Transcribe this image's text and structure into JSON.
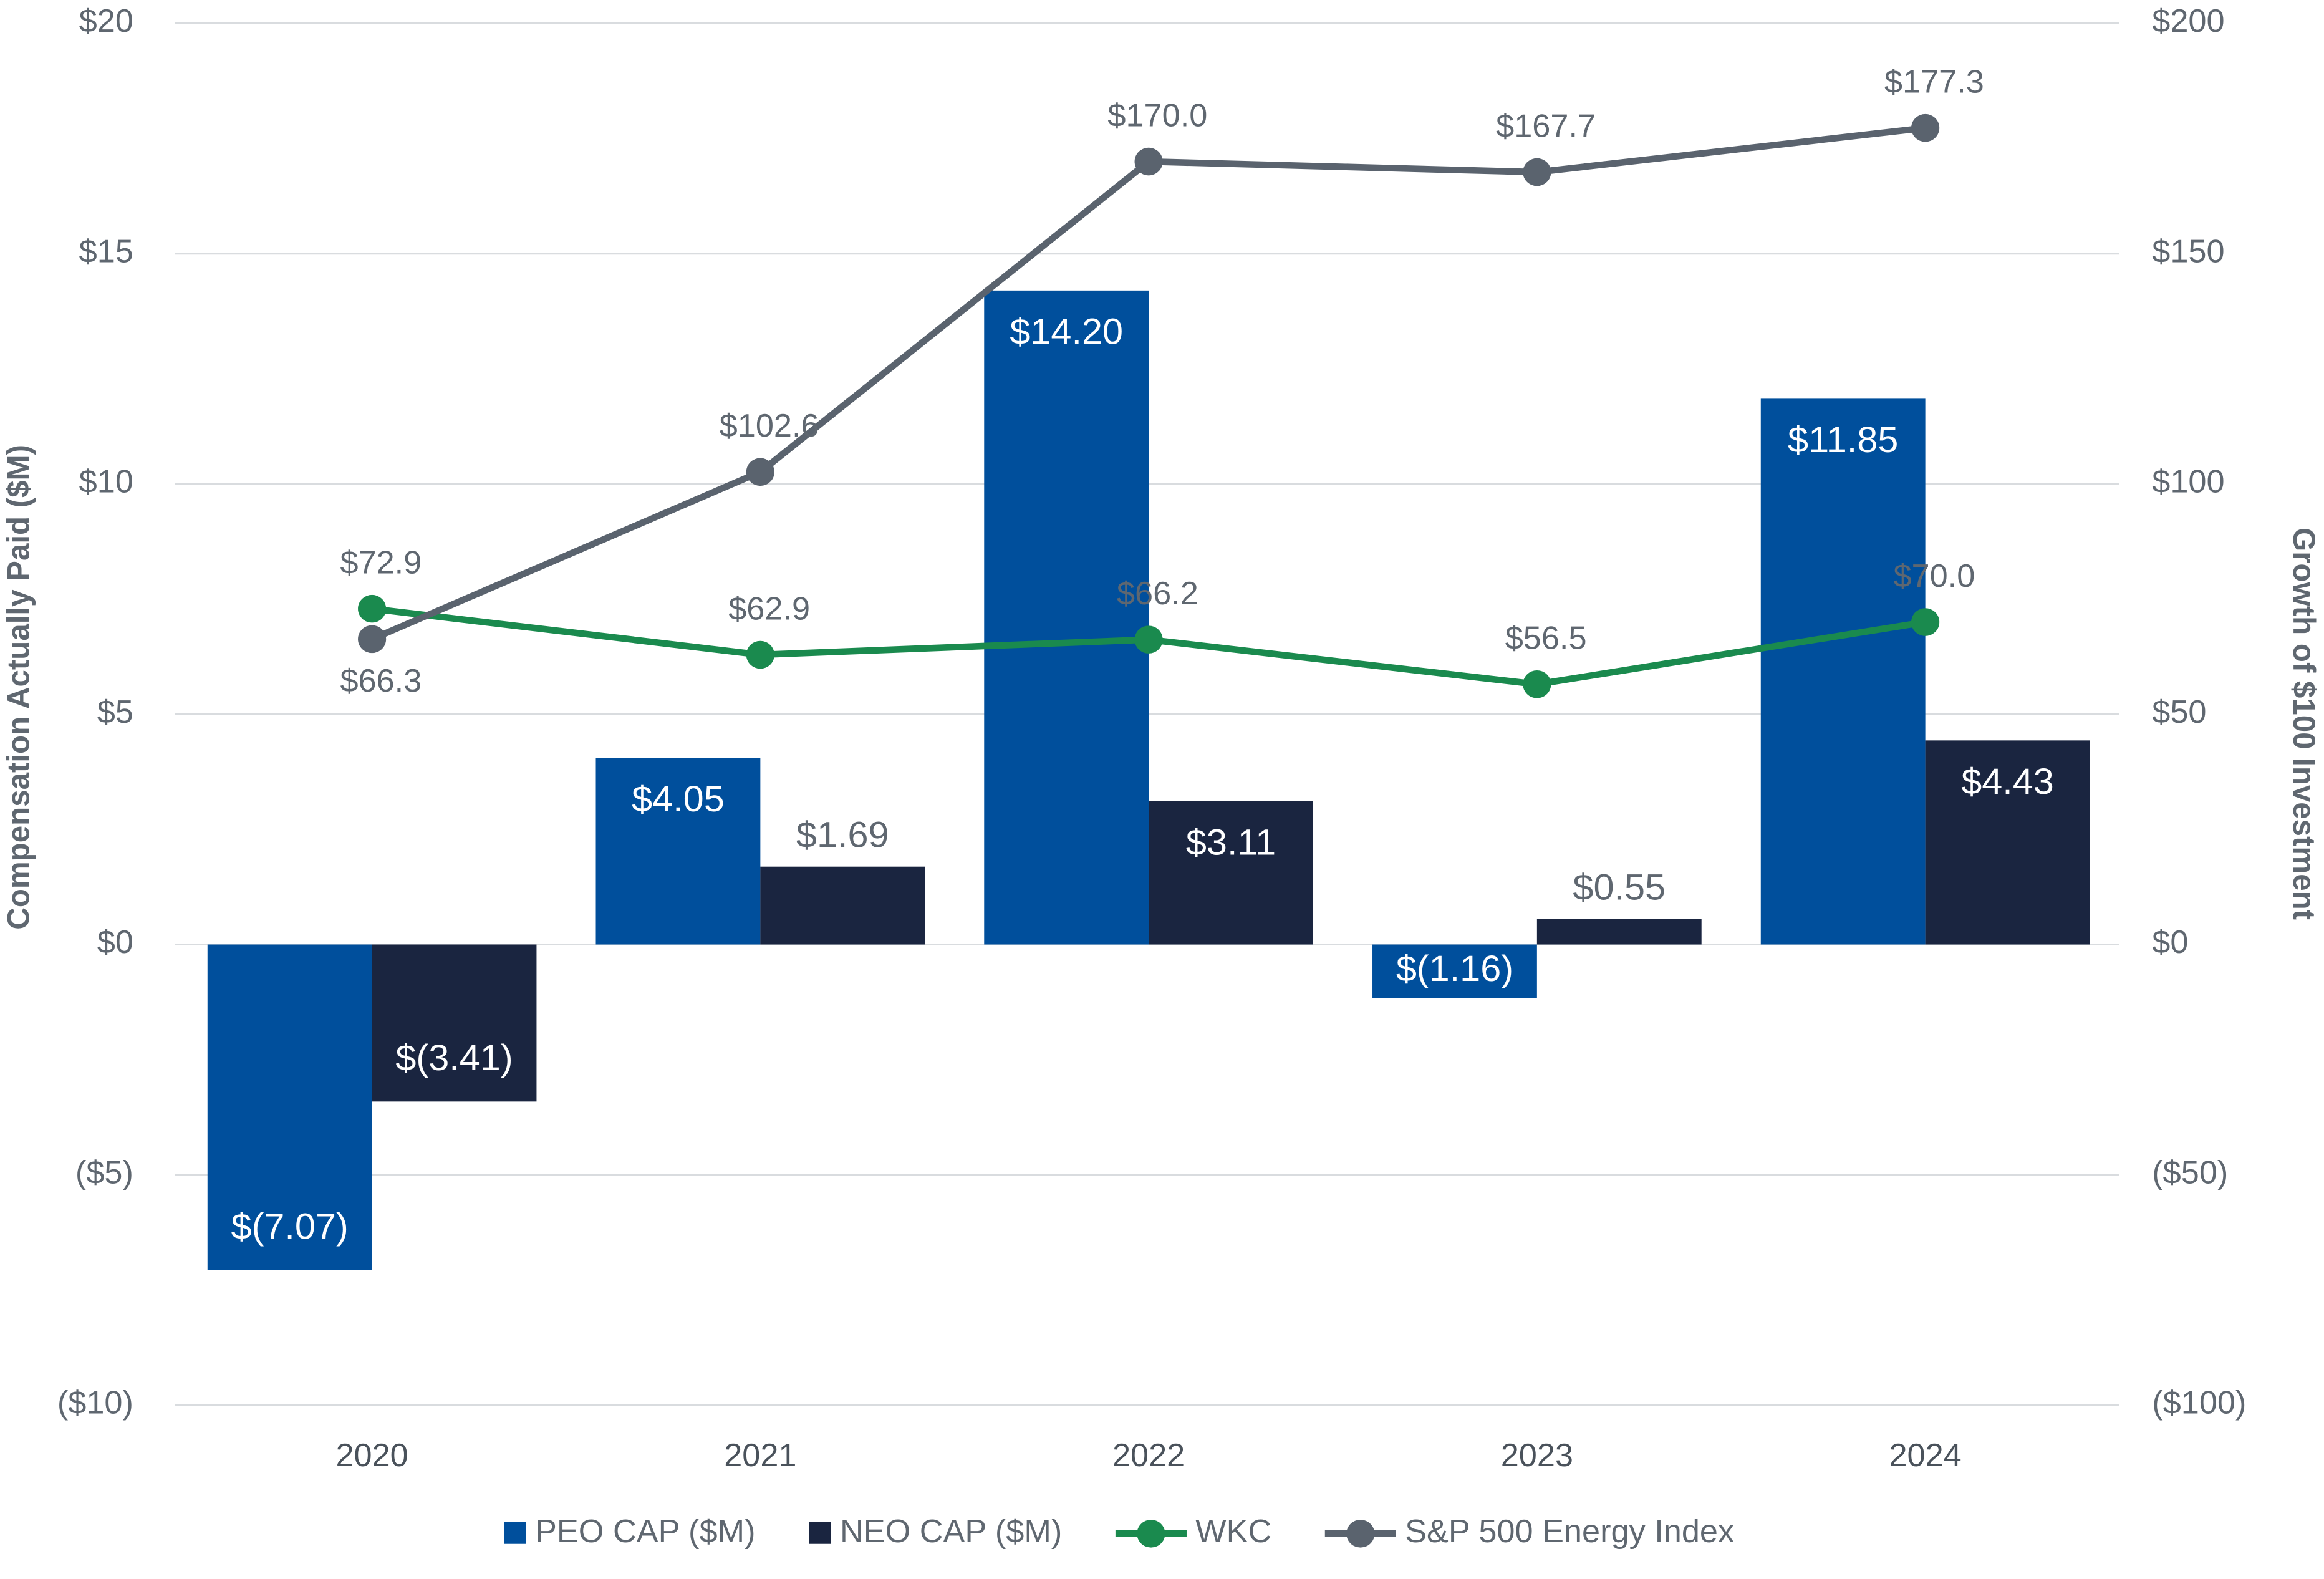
{
  "chart_data": {
    "type": "bar_line",
    "categories": [
      "2020",
      "2021",
      "2022",
      "2023",
      "2024"
    ],
    "ylabel": "Compensation Actually Paid ($M)",
    "y2label": "Growth of $100 Investment",
    "ylim": [
      -10,
      20
    ],
    "yticks": [
      {
        "value": -10,
        "label": "($10)"
      },
      {
        "value": -5,
        "label": "($5)"
      },
      {
        "value": 0,
        "label": "$0"
      },
      {
        "value": 5,
        "label": "$5"
      },
      {
        "value": 10,
        "label": "$10"
      },
      {
        "value": 15,
        "label": "$15"
      },
      {
        "value": 20,
        "label": "$20"
      }
    ],
    "y2lim": [
      -100,
      200
    ],
    "y2ticks": [
      {
        "value": -100,
        "label": "($100)"
      },
      {
        "value": -50,
        "label": "($50)"
      },
      {
        "value": 0,
        "label": "$0"
      },
      {
        "value": 50,
        "label": "$50"
      },
      {
        "value": 100,
        "label": "$100"
      },
      {
        "value": 150,
        "label": "$150"
      },
      {
        "value": 200,
        "label": "$200"
      }
    ],
    "grid": true,
    "legend": "bottom",
    "series": [
      {
        "name": "PEO CAP ($M)",
        "kind": "bar",
        "color": "#004f9c",
        "values": [
          -7.07,
          4.05,
          14.2,
          -1.16,
          11.85
        ],
        "value_labels": [
          "$(7.07)",
          "$4.05",
          "$14.20",
          "$(1.16)",
          "$11.85"
        ]
      },
      {
        "name": "NEO CAP ($M)",
        "kind": "bar",
        "color": "#1a2540",
        "values": [
          -3.41,
          1.69,
          3.11,
          0.55,
          4.43
        ],
        "value_labels": [
          "$(3.41)",
          "$1.69",
          "$3.11",
          "$0.55",
          "$4.43"
        ]
      },
      {
        "name": "WKC",
        "kind": "line",
        "axis": "y2",
        "color": "#1a8a4e",
        "values": [
          72.9,
          62.9,
          66.2,
          56.5,
          70.0
        ],
        "value_labels": [
          "$72.9",
          "$62.9",
          "$66.2",
          "$56.5",
          "$70.0"
        ]
      },
      {
        "name": "S&P 500 Energy Index",
        "kind": "line",
        "axis": "y2",
        "color": "#5a636e",
        "values": [
          66.3,
          102.6,
          170.0,
          167.7,
          177.3
        ],
        "value_labels": [
          "$66.3",
          "$102.6",
          "$170.0",
          "$167.7",
          "$177.3"
        ]
      }
    ]
  }
}
